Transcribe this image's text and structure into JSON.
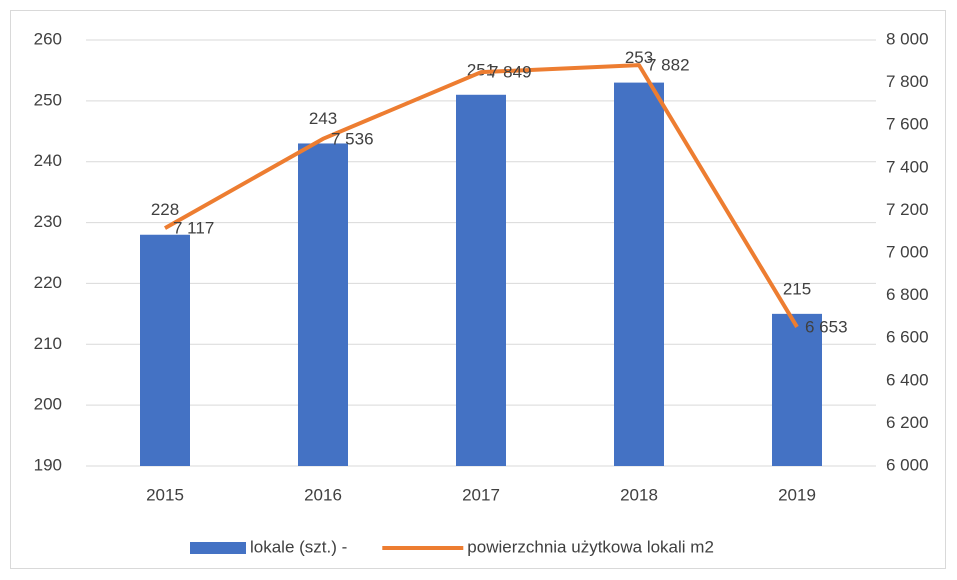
{
  "chart_data": {
    "type": "combo",
    "categories": [
      "2015",
      "2016",
      "2017",
      "2018",
      "2019"
    ],
    "series": [
      {
        "name": "lokale (szt.) -",
        "type": "bar",
        "color": "#4472c4",
        "values": [
          228,
          243,
          251,
          253,
          215
        ]
      },
      {
        "name": "powierzchnia użytkowa lokali m2",
        "type": "line",
        "axis": "y2",
        "color": "#ed7d31",
        "values": [
          7117,
          7536,
          7849,
          7882,
          6653
        ],
        "value_labels": [
          "7 117",
          "7 536",
          "7 849",
          "7 882",
          "6 653"
        ]
      }
    ],
    "ylim": [
      190,
      260
    ],
    "yticks": [
      190,
      200,
      210,
      220,
      230,
      240,
      250,
      260
    ],
    "y2lim": [
      6000,
      8000
    ],
    "y2ticks": [
      {
        "value": 6000,
        "label": "6 000"
      },
      {
        "value": 6200,
        "label": "6 200"
      },
      {
        "value": 6400,
        "label": "6 400"
      },
      {
        "value": 6600,
        "label": "6 600"
      },
      {
        "value": 6800,
        "label": "6 800"
      },
      {
        "value": 7000,
        "label": "7 000"
      },
      {
        "value": 7200,
        "label": "7 200"
      },
      {
        "value": 7400,
        "label": "7 400"
      },
      {
        "value": 7600,
        "label": "7 600"
      },
      {
        "value": 7800,
        "label": "7 800"
      },
      {
        "value": 8000,
        "label": "8 000"
      }
    ],
    "grid": true,
    "legend": "bottom"
  }
}
